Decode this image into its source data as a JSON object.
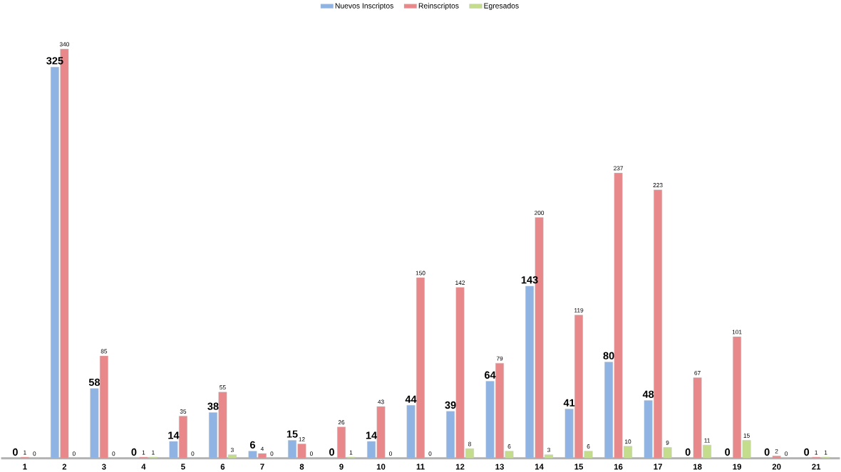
{
  "chart_data": {
    "type": "bar",
    "data_labels": true,
    "legend": "top",
    "categories": [
      "1",
      "2",
      "3",
      "4",
      "5",
      "6",
      "7",
      "8",
      "9",
      "10",
      "11",
      "12",
      "13",
      "14",
      "15",
      "16",
      "17",
      "18",
      "19",
      "20",
      "21"
    ],
    "series": [
      {
        "name": "Nuevos Inscriptos",
        "color": "#8fb4e3",
        "values": [
          0,
          325,
          58,
          0,
          14,
          38,
          6,
          15,
          0,
          14,
          44,
          39,
          64,
          143,
          41,
          80,
          48,
          0,
          0,
          0,
          0
        ]
      },
      {
        "name": "Reinscriptos",
        "color": "#e8888a",
        "values": [
          1,
          340,
          85,
          1,
          35,
          55,
          4,
          12,
          26,
          43,
          150,
          142,
          79,
          200,
          119,
          237,
          223,
          67,
          101,
          2,
          1
        ]
      },
      {
        "name": "Egresados",
        "color": "#c3dd8c",
        "values": [
          0,
          0,
          0,
          1,
          0,
          3,
          0,
          0,
          1,
          0,
          0,
          8,
          6,
          3,
          6,
          10,
          9,
          11,
          15,
          0,
          1
        ]
      }
    ]
  }
}
